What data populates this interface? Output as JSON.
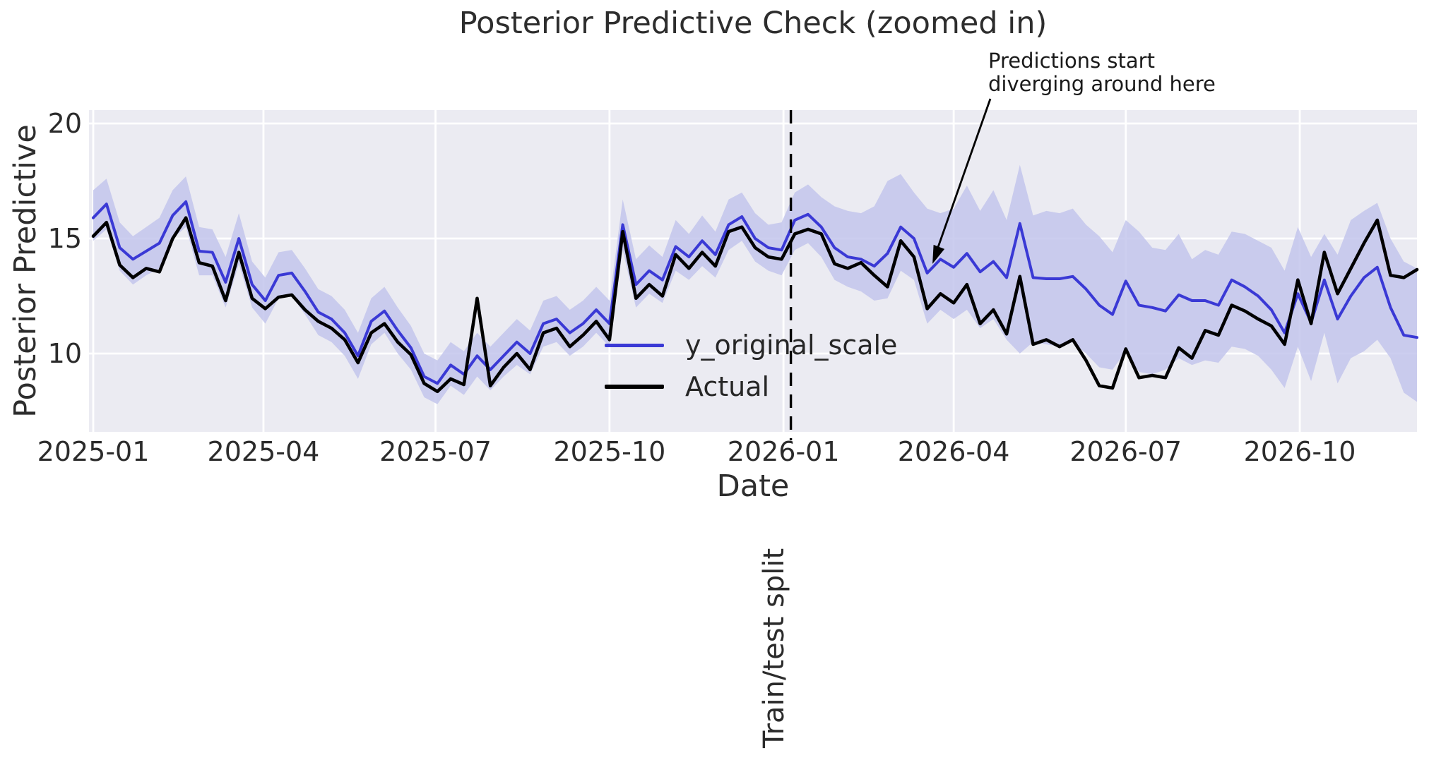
{
  "title": "Posterior Predictive Check (zoomed in)",
  "chart_data": {
    "type": "line",
    "title": "Posterior Predictive Check (zoomed in)",
    "xlabel": "Date",
    "ylabel": "Posterior Predictive",
    "grid": true,
    "legend_position": "center-left-of-plot",
    "ylim": [
      6.6,
      20.6
    ],
    "y_ticks": [
      20,
      15,
      10
    ],
    "x_unit": "weeks since 2025-01-01 (one point per week)",
    "x_ticks": [
      {
        "label": "2025-01",
        "week": 0
      },
      {
        "label": "2025-04",
        "week": 12.857
      },
      {
        "label": "2025-07",
        "week": 25.857
      },
      {
        "label": "2025-10",
        "week": 39.0
      },
      {
        "label": "2026-01",
        "week": 52.143
      },
      {
        "label": "2026-04",
        "week": 65.0
      },
      {
        "label": "2026-07",
        "week": 78.0
      },
      {
        "label": "2026-10",
        "week": 91.143
      }
    ],
    "series": [
      {
        "name": "y_original_scale",
        "color": "#3a39d5",
        "width": 4,
        "values": [
          15.9,
          16.5,
          14.6,
          14.1,
          14.45,
          14.8,
          16.0,
          16.6,
          14.45,
          14.4,
          13.1,
          15.0,
          13.0,
          12.3,
          13.4,
          13.5,
          12.7,
          11.8,
          11.5,
          10.9,
          9.9,
          11.4,
          11.85,
          11.0,
          10.25,
          9.0,
          8.7,
          9.5,
          9.1,
          9.9,
          9.3,
          9.9,
          10.5,
          10.0,
          11.3,
          11.5,
          10.9,
          11.3,
          11.9,
          11.3,
          15.6,
          13.0,
          13.6,
          13.2,
          14.65,
          14.2,
          14.9,
          14.3,
          15.6,
          15.95,
          15.0,
          14.6,
          14.5,
          15.8,
          16.05,
          15.5,
          14.6,
          14.2,
          14.1,
          13.8,
          14.35,
          15.5,
          15.0,
          13.5,
          14.1,
          13.75,
          14.35,
          13.55,
          14.0,
          13.3,
          15.65,
          13.3,
          13.25,
          13.25,
          13.35,
          12.8,
          12.1,
          11.7,
          13.15,
          12.1,
          12.0,
          11.85,
          12.55,
          12.3,
          12.3,
          12.1,
          13.2,
          12.9,
          12.5,
          11.9,
          10.9,
          12.6,
          11.35,
          13.2,
          11.5,
          12.5,
          13.3,
          13.75,
          12.0,
          10.8,
          10.7
        ]
      },
      {
        "name": "Actual",
        "color": "#000000",
        "width": 4.6,
        "values": [
          15.1,
          15.7,
          13.85,
          13.3,
          13.7,
          13.55,
          15.0,
          15.9,
          13.95,
          13.8,
          12.3,
          14.4,
          12.4,
          11.95,
          12.45,
          12.55,
          11.9,
          11.4,
          11.1,
          10.6,
          9.6,
          10.9,
          11.3,
          10.5,
          9.95,
          8.7,
          8.35,
          8.9,
          8.65,
          12.4,
          8.6,
          9.4,
          10.0,
          9.3,
          10.9,
          11.1,
          10.3,
          10.8,
          11.4,
          10.6,
          15.3,
          12.4,
          13.0,
          12.5,
          14.3,
          13.7,
          14.4,
          13.8,
          15.3,
          15.5,
          14.6,
          14.2,
          14.1,
          15.2,
          15.4,
          15.2,
          13.9,
          13.7,
          13.95,
          13.4,
          12.9,
          14.9,
          14.2,
          11.95,
          12.6,
          12.2,
          13.0,
          11.3,
          11.9,
          10.85,
          13.35,
          10.4,
          10.6,
          10.3,
          10.6,
          9.7,
          8.6,
          8.5,
          10.2,
          8.95,
          9.05,
          8.95,
          10.25,
          9.8,
          11.0,
          10.8,
          12.1,
          11.85,
          11.5,
          11.2,
          10.4,
          13.2,
          11.3,
          14.4,
          12.6,
          13.7,
          14.8,
          15.8,
          13.4,
          13.3,
          13.65
        ]
      }
    ],
    "band": {
      "name": "posterior predictive interval",
      "color": "#c3c5ec",
      "upper": [
        17.1,
        17.6,
        15.7,
        15.1,
        15.5,
        15.9,
        17.1,
        17.7,
        15.5,
        15.4,
        14.2,
        16.1,
        14.0,
        13.3,
        14.4,
        14.5,
        13.7,
        12.8,
        12.5,
        11.9,
        10.9,
        12.4,
        12.9,
        12.0,
        11.2,
        10.0,
        9.7,
        10.5,
        10.1,
        10.9,
        10.3,
        10.9,
        11.5,
        11.0,
        12.3,
        12.5,
        11.9,
        12.3,
        12.9,
        12.3,
        16.7,
        14.1,
        14.7,
        14.2,
        15.8,
        15.2,
        16.0,
        15.3,
        16.7,
        17.0,
        16.1,
        15.6,
        15.7,
        17.0,
        17.35,
        16.8,
        16.4,
        16.2,
        16.1,
        16.4,
        17.5,
        17.8,
        17.0,
        16.3,
        16.1,
        16.3,
        17.3,
        16.2,
        17.1,
        15.8,
        18.2,
        16.0,
        16.2,
        16.1,
        16.3,
        15.6,
        15.1,
        14.4,
        15.8,
        15.3,
        14.6,
        14.5,
        15.2,
        14.1,
        14.5,
        14.3,
        15.3,
        15.2,
        14.9,
        14.6,
        13.6,
        15.5,
        14.2,
        15.2,
        14.3,
        15.8,
        16.2,
        16.55,
        15.0,
        14.0,
        13.7
      ],
      "lower": [
        14.9,
        15.4,
        13.6,
        13.0,
        13.4,
        13.7,
        15.0,
        15.5,
        13.4,
        13.4,
        12.0,
        13.9,
        12.0,
        11.3,
        12.4,
        12.5,
        11.7,
        10.8,
        10.5,
        9.9,
        8.9,
        10.4,
        10.9,
        10.0,
        9.3,
        8.1,
        7.8,
        8.6,
        8.2,
        9.0,
        8.4,
        9.0,
        9.5,
        9.1,
        10.3,
        10.5,
        9.9,
        10.3,
        10.9,
        10.3,
        14.5,
        12.0,
        12.6,
        12.2,
        13.6,
        13.2,
        13.8,
        13.3,
        14.5,
        14.9,
        14.0,
        13.6,
        13.4,
        14.5,
        14.8,
        14.2,
        13.2,
        12.9,
        12.7,
        12.3,
        12.4,
        13.6,
        13.2,
        11.3,
        11.9,
        11.5,
        11.9,
        11.1,
        11.5,
        10.6,
        10.0,
        10.5,
        10.4,
        10.3,
        10.5,
        10.0,
        9.4,
        9.3,
        10.1,
        9.2,
        9.1,
        9.3,
        9.8,
        9.5,
        9.7,
        9.6,
        10.3,
        10.2,
        9.9,
        9.3,
        8.5,
        10.3,
        8.8,
        10.9,
        8.7,
        9.8,
        10.1,
        10.6,
        9.8,
        8.3,
        7.9
      ]
    },
    "split_line": {
      "label": "Train/test split",
      "style": "dashed",
      "color": "#000000",
      "week": 52.7
    },
    "annotation": {
      "line1": "Predictions start",
      "line2": "diverging around here",
      "arrow_tip_week": 63.4,
      "arrow_tip_value": 13.9
    },
    "colors": {
      "plot_bg": "#ebebf2",
      "grid": "#ffffff",
      "band": "#c3c5ec",
      "prediction_line": "#3a39d5",
      "actual_line": "#000000",
      "text": "#262626"
    }
  }
}
